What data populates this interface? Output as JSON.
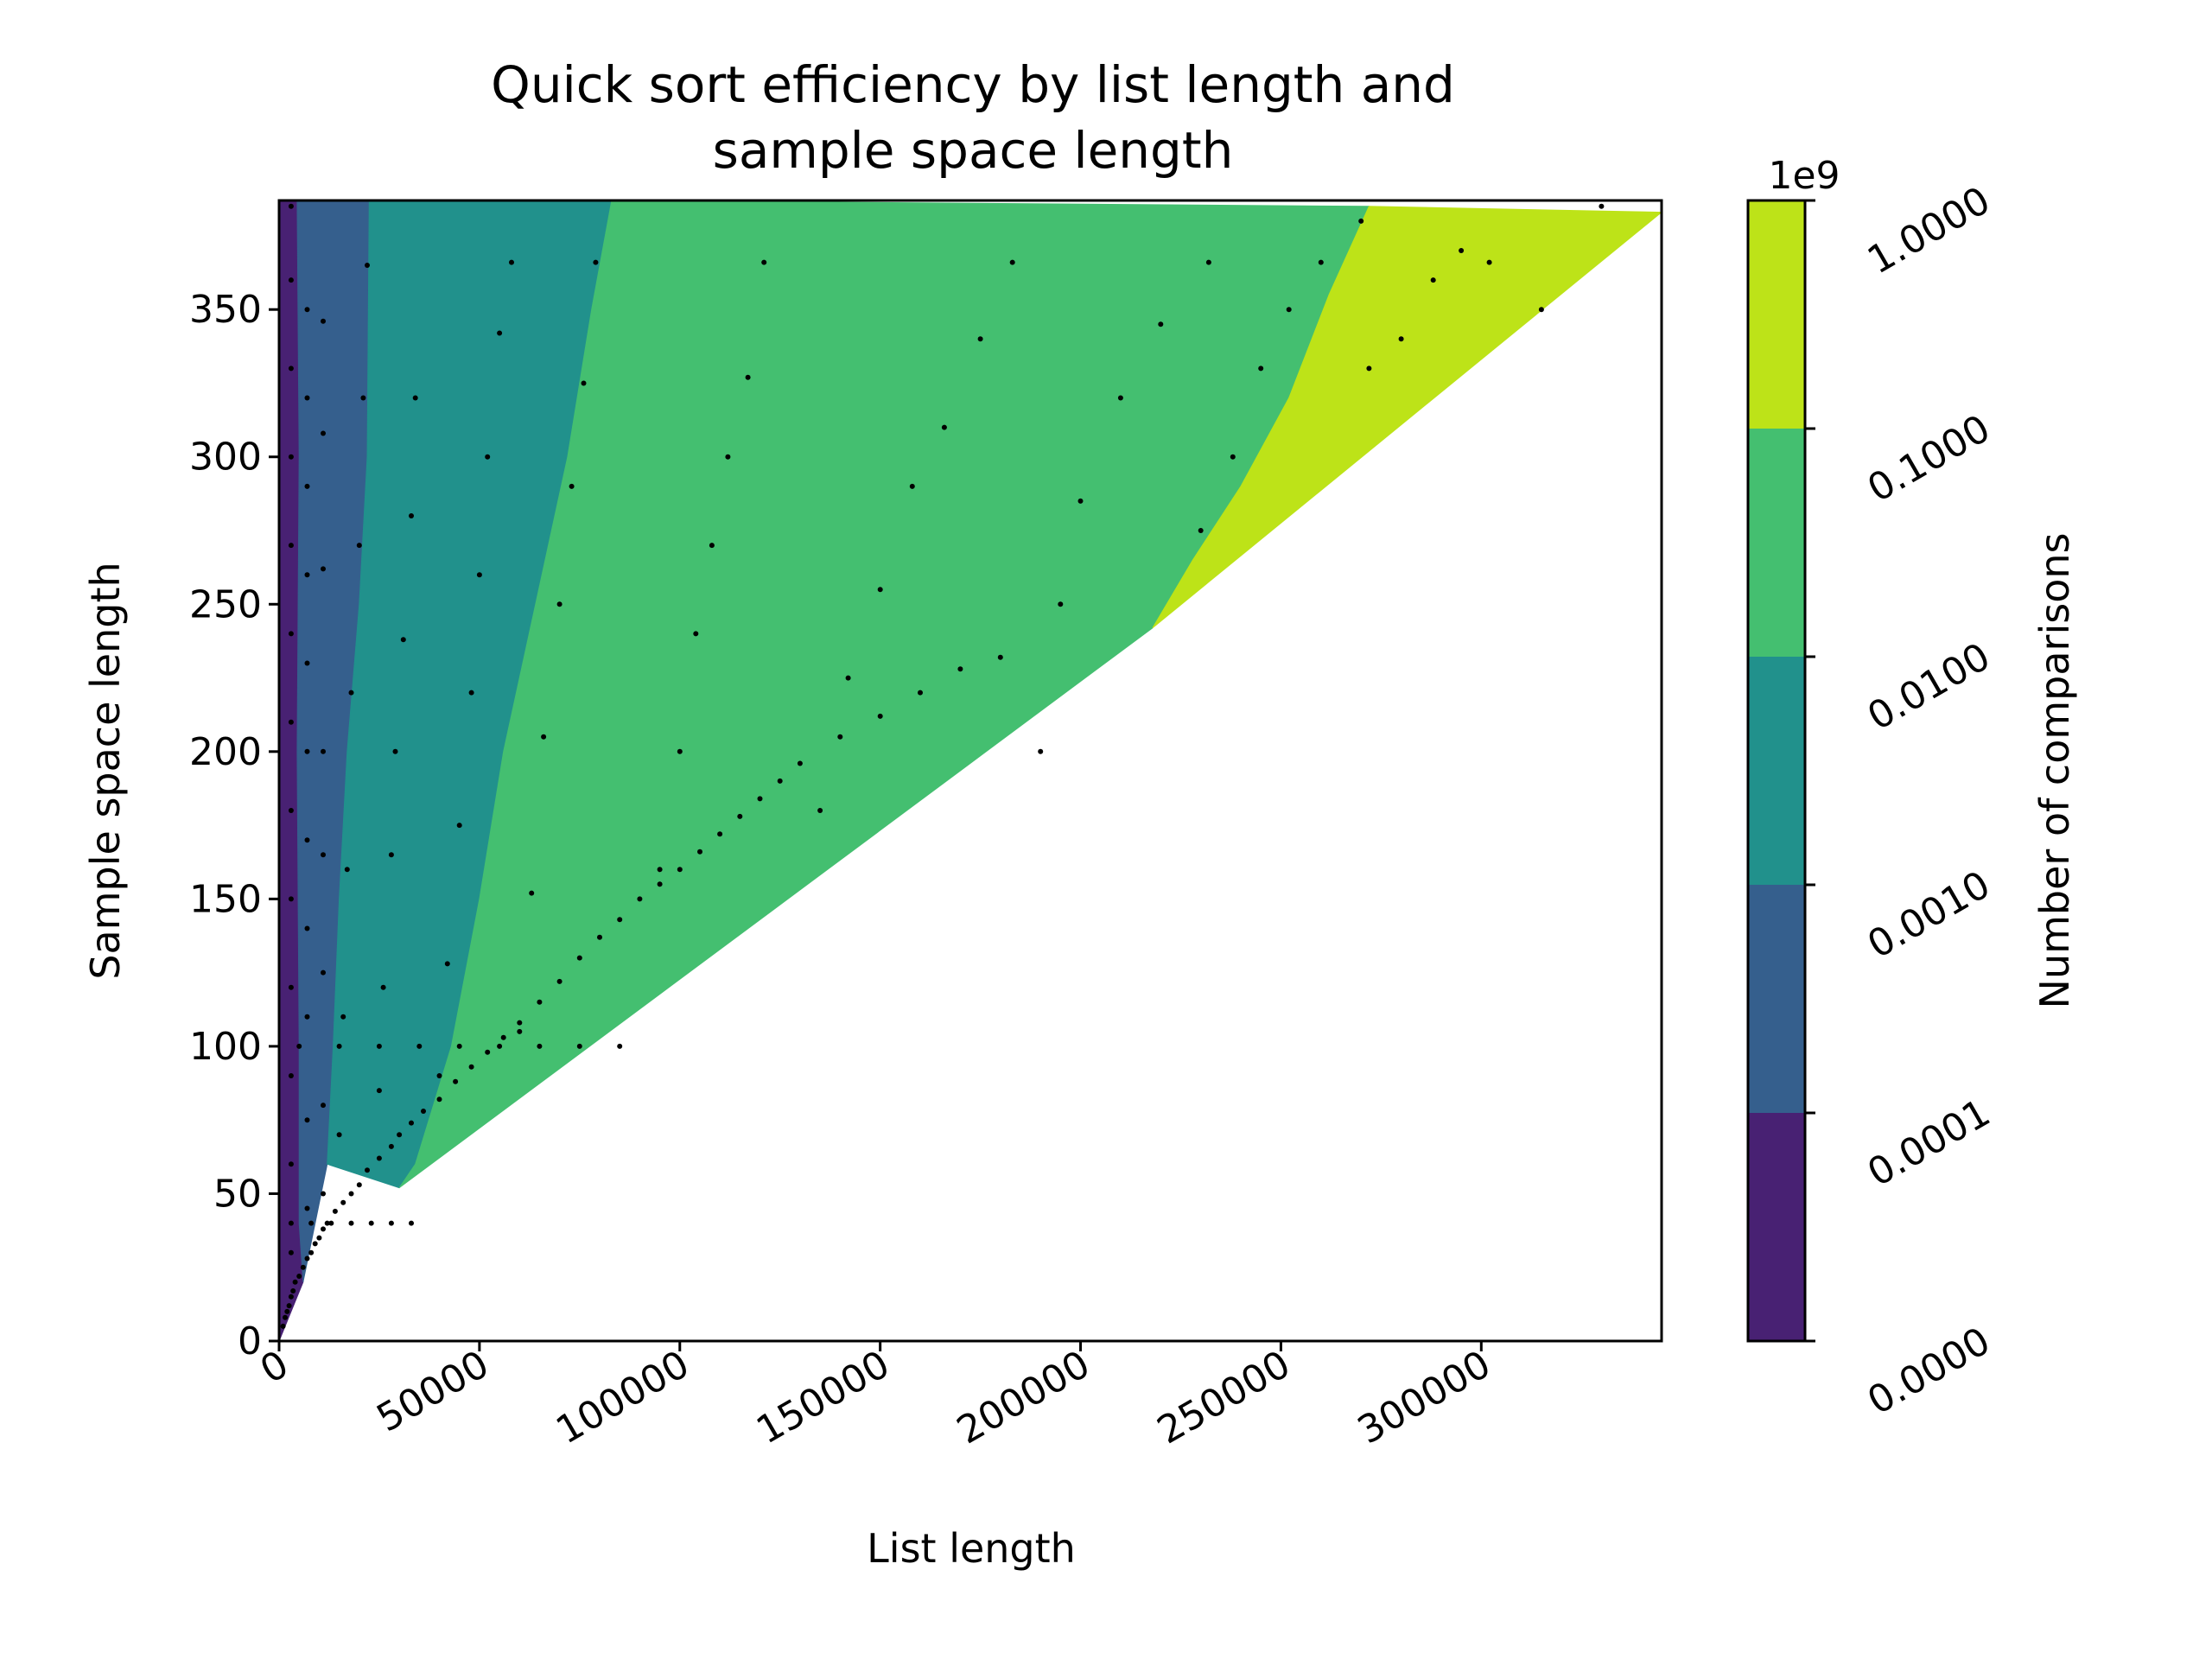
{
  "chart_data": {
    "type": "contour",
    "title_lines": [
      "Quick sort efficiency by list length and",
      "sample space length"
    ],
    "xlabel": "List length",
    "ylabel": "Sample space length",
    "xlim": [
      0,
      345000
    ],
    "ylim": [
      0,
      387
    ],
    "x_ticks": [
      0,
      50000,
      100000,
      150000,
      200000,
      250000,
      300000
    ],
    "x_tick_labels": [
      "0",
      "50000",
      "100000",
      "150000",
      "200000",
      "250000",
      "300000"
    ],
    "y_ticks": [
      0,
      50,
      100,
      150,
      200,
      250,
      300,
      350
    ],
    "y_tick_labels": [
      "0",
      "50",
      "100",
      "150",
      "200",
      "250",
      "300",
      "350"
    ],
    "colorbar": {
      "label": "Number of comparisons",
      "offset_text": "1e9",
      "tick_labels": [
        "0.0000",
        "0.0001",
        "0.0010",
        "0.0100",
        "0.1000",
        "1.0000"
      ]
    },
    "levels": [
      {
        "range": "0.0000-0.0001",
        "color": "#482173",
        "region": [
          [
            0,
            0
          ],
          [
            6000,
            20
          ],
          [
            5000,
            40
          ],
          [
            5000,
            100
          ],
          [
            4500,
            200
          ],
          [
            5000,
            300
          ],
          [
            4500,
            387
          ],
          [
            0,
            387
          ]
        ]
      },
      {
        "range": "0.0001-0.0010",
        "color": "#355f8d",
        "region": [
          [
            6000,
            20
          ],
          [
            12000,
            60
          ],
          [
            13500,
            100
          ],
          [
            15000,
            150
          ],
          [
            17000,
            200
          ],
          [
            20000,
            250
          ],
          [
            22000,
            300
          ],
          [
            22500,
            387
          ],
          [
            4500,
            387
          ],
          [
            5000,
            300
          ],
          [
            4500,
            200
          ],
          [
            5000,
            100
          ],
          [
            5000,
            40
          ]
        ]
      },
      {
        "range": "0.0010-0.0100",
        "color": "#21918c",
        "region": [
          [
            12000,
            60
          ],
          [
            30000,
            52
          ],
          [
            34000,
            60
          ],
          [
            43000,
            100
          ],
          [
            50000,
            150
          ],
          [
            56000,
            200
          ],
          [
            64000,
            250
          ],
          [
            72000,
            300
          ],
          [
            78000,
            350
          ],
          [
            83000,
            387
          ],
          [
            22500,
            387
          ],
          [
            22000,
            300
          ],
          [
            20000,
            250
          ],
          [
            17000,
            200
          ],
          [
            15000,
            150
          ],
          [
            13500,
            100
          ]
        ]
      },
      {
        "range": "0.0100-0.1000",
        "color": "#44bf70",
        "region": [
          [
            30000,
            52
          ],
          [
            218000,
            242
          ],
          [
            228000,
            265
          ],
          [
            240000,
            290
          ],
          [
            252000,
            320
          ],
          [
            262000,
            355
          ],
          [
            272000,
            385
          ],
          [
            83000,
            387
          ],
          [
            78000,
            350
          ],
          [
            72000,
            300
          ],
          [
            64000,
            250
          ],
          [
            56000,
            200
          ],
          [
            50000,
            150
          ],
          [
            43000,
            100
          ],
          [
            34000,
            60
          ]
        ]
      },
      {
        "range": "0.1000-1.0000",
        "color": "#bde318",
        "region": [
          [
            218000,
            242
          ],
          [
            345000,
            383
          ],
          [
            272000,
            385
          ],
          [
            262000,
            355
          ],
          [
            252000,
            320
          ],
          [
            240000,
            290
          ],
          [
            228000,
            265
          ]
        ]
      }
    ],
    "scatter": {
      "points": [
        [
          1000,
          5
        ],
        [
          1500,
          8
        ],
        [
          2000,
          10
        ],
        [
          2500,
          12
        ],
        [
          3000,
          15
        ],
        [
          3500,
          17
        ],
        [
          4000,
          20
        ],
        [
          5000,
          22
        ],
        [
          6000,
          25
        ],
        [
          7000,
          28
        ],
        [
          8000,
          30
        ],
        [
          9000,
          33
        ],
        [
          10000,
          35
        ],
        [
          11000,
          38
        ],
        [
          12000,
          40
        ],
        [
          14000,
          44
        ],
        [
          16000,
          47
        ],
        [
          18000,
          50
        ],
        [
          20000,
          53
        ],
        [
          22000,
          58
        ],
        [
          25000,
          62
        ],
        [
          28000,
          66
        ],
        [
          30000,
          70
        ],
        [
          33000,
          74
        ],
        [
          36000,
          78
        ],
        [
          40000,
          82
        ],
        [
          44000,
          88
        ],
        [
          48000,
          93
        ],
        [
          52000,
          98
        ],
        [
          56000,
          103
        ],
        [
          60000,
          108
        ],
        [
          65000,
          115
        ],
        [
          70000,
          122
        ],
        [
          75000,
          130
        ],
        [
          80000,
          137
        ],
        [
          85000,
          143
        ],
        [
          90000,
          150
        ],
        [
          95000,
          155
        ],
        [
          100000,
          160
        ],
        [
          105000,
          166
        ],
        [
          110000,
          172
        ],
        [
          115000,
          178
        ],
        [
          120000,
          184
        ],
        [
          125000,
          190
        ],
        [
          130000,
          196
        ],
        [
          140000,
          205
        ],
        [
          150000,
          212
        ],
        [
          160000,
          220
        ],
        [
          170000,
          228
        ],
        [
          180000,
          232
        ],
        [
          3000,
          30
        ],
        [
          3000,
          60
        ],
        [
          3000,
          90
        ],
        [
          3000,
          120
        ],
        [
          3000,
          150
        ],
        [
          3000,
          180
        ],
        [
          3000,
          210
        ],
        [
          3000,
          240
        ],
        [
          3000,
          270
        ],
        [
          3000,
          300
        ],
        [
          3000,
          330
        ],
        [
          3000,
          360
        ],
        [
          3000,
          385
        ],
        [
          7000,
          45
        ],
        [
          7000,
          75
        ],
        [
          7000,
          110
        ],
        [
          7000,
          140
        ],
        [
          7000,
          170
        ],
        [
          7000,
          200
        ],
        [
          7000,
          230
        ],
        [
          7000,
          260
        ],
        [
          7000,
          290
        ],
        [
          7000,
          320
        ],
        [
          7000,
          350
        ],
        [
          11000,
          50
        ],
        [
          11000,
          80
        ],
        [
          11000,
          125
        ],
        [
          11000,
          165
        ],
        [
          11000,
          200
        ],
        [
          11000,
          262
        ],
        [
          11000,
          308
        ],
        [
          11000,
          346
        ],
        [
          15000,
          70
        ],
        [
          16000,
          110
        ],
        [
          17000,
          160
        ],
        [
          18000,
          220
        ],
        [
          20000,
          270
        ],
        [
          21000,
          320
        ],
        [
          22000,
          365
        ],
        [
          25000,
          85
        ],
        [
          26000,
          120
        ],
        [
          28000,
          165
        ],
        [
          29000,
          200
        ],
        [
          31000,
          238
        ],
        [
          33000,
          280
        ],
        [
          34000,
          320
        ],
        [
          40000,
          90
        ],
        [
          42000,
          128
        ],
        [
          45000,
          175
        ],
        [
          48000,
          220
        ],
        [
          50000,
          260
        ],
        [
          52000,
          300
        ],
        [
          55000,
          342
        ],
        [
          58000,
          366
        ],
        [
          60000,
          105
        ],
        [
          63000,
          152
        ],
        [
          66000,
          205
        ],
        [
          70000,
          250
        ],
        [
          73000,
          290
        ],
        [
          76000,
          325
        ],
        [
          79000,
          366
        ],
        [
          95000,
          160
        ],
        [
          100000,
          200
        ],
        [
          104000,
          240
        ],
        [
          108000,
          270
        ],
        [
          112000,
          300
        ],
        [
          117000,
          327
        ],
        [
          121000,
          366
        ],
        [
          135000,
          180
        ],
        [
          142000,
          225
        ],
        [
          150000,
          255
        ],
        [
          158000,
          290
        ],
        [
          166000,
          310
        ],
        [
          175000,
          340
        ],
        [
          183000,
          366
        ],
        [
          190000,
          200
        ],
        [
          195000,
          250
        ],
        [
          200000,
          285
        ],
        [
          210000,
          320
        ],
        [
          220000,
          345
        ],
        [
          232000,
          366
        ],
        [
          230000,
          275
        ],
        [
          238000,
          300
        ],
        [
          245000,
          330
        ],
        [
          252000,
          350
        ],
        [
          260000,
          366
        ],
        [
          270000,
          380
        ],
        [
          272000,
          330
        ],
        [
          280000,
          340
        ],
        [
          288000,
          360
        ],
        [
          295000,
          370
        ],
        [
          302000,
          366
        ],
        [
          315000,
          350
        ],
        [
          330000,
          385
        ],
        [
          5000,
          100
        ],
        [
          15000,
          100
        ],
        [
          25000,
          100
        ],
        [
          35000,
          100
        ],
        [
          45000,
          100
        ],
        [
          55000,
          100
        ],
        [
          65000,
          100
        ],
        [
          75000,
          100
        ],
        [
          85000,
          100
        ],
        [
          3000,
          40
        ],
        [
          8000,
          40
        ],
        [
          13000,
          40
        ],
        [
          18000,
          40
        ],
        [
          23000,
          40
        ],
        [
          28000,
          40
        ],
        [
          33000,
          40
        ]
      ],
      "color": "#000000"
    },
    "grid": false
  }
}
